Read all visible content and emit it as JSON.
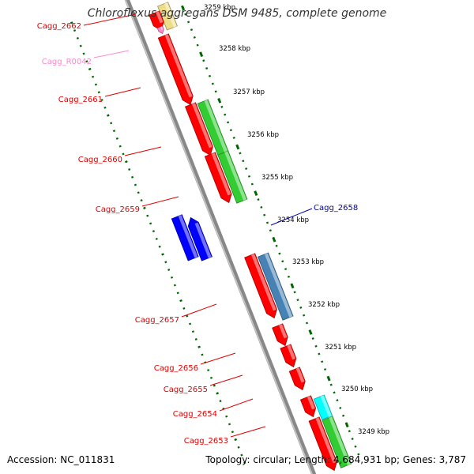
{
  "title": "Chloroflexus aggregans DSM 9485, complete genome",
  "footer": {
    "accession": "Accession: NC_011831",
    "summary": "Topology: circular; Length: 4,684,931 bp; Genes: 3,787"
  },
  "colors": {
    "cds": "#ff0000",
    "rna": "#ff88cc",
    "dark_blue": "#0000ff",
    "steel_blue": "#4682b4",
    "green": "#33cc33",
    "cyan": "#00ffff",
    "pale_yellow": "#eedd88",
    "backbone": "#888888",
    "ruler": "#006600"
  },
  "ruler": {
    "ticks": [
      "3259 kbp",
      "3258 kbp",
      "3257 kbp",
      "3256 kbp",
      "3255 kbp",
      "3254 kbp",
      "3253 kbp",
      "3252 kbp",
      "3251 kbp",
      "3250 kbp",
      "3249 kbp"
    ]
  },
  "gene_labels": [
    {
      "name": "Cagg_2662",
      "color": "#dd0000"
    },
    {
      "name": "Cagg_R0042",
      "color": "#ff88cc"
    },
    {
      "name": "Cagg_2661",
      "color": "#dd0000"
    },
    {
      "name": "Cagg_2660",
      "color": "#dd0000"
    },
    {
      "name": "Cagg_2659",
      "color": "#dd0000"
    },
    {
      "name": "Cagg_2658",
      "color": "#0000aa"
    },
    {
      "name": "Cagg_2657",
      "color": "#dd0000"
    },
    {
      "name": "Cagg_2656",
      "color": "#dd0000"
    },
    {
      "name": "Cagg_2655",
      "color": "#dd0000"
    },
    {
      "name": "Cagg_2654",
      "color": "#dd0000"
    },
    {
      "name": "Cagg_2653",
      "color": "#dd0000"
    }
  ]
}
